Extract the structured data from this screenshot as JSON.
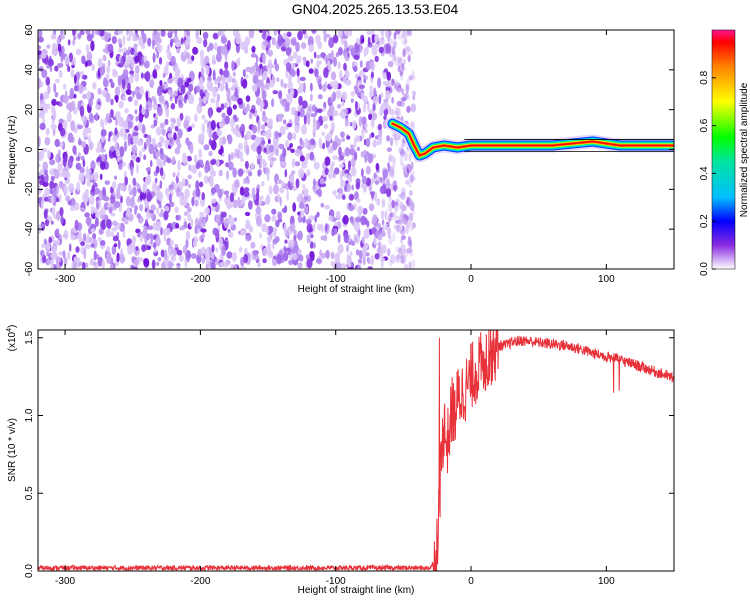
{
  "title": "GN04.2025.265.13.53.E04",
  "chart_data": [
    {
      "type": "heatmap",
      "xlabel": "Height of straight line (km)",
      "ylabel": "Frequency (Hz)",
      "xlim": [
        -320,
        150
      ],
      "ylim": [
        -60,
        60
      ],
      "xticks": [
        -300,
        -200,
        -100,
        0,
        100
      ],
      "yticks": [
        -60,
        -40,
        -20,
        0,
        20,
        40,
        60
      ],
      "noise_region_x": [
        -320,
        -42
      ],
      "signal_band": {
        "x": [
          -58,
          -52,
          -46,
          -42,
          -38,
          -34,
          -28,
          -20,
          -10,
          0,
          20,
          60,
          75,
          90,
          110,
          150
        ],
        "frequency": [
          13,
          11,
          8,
          2,
          -3,
          -2,
          1,
          2,
          1,
          2,
          2,
          2,
          3,
          4,
          2,
          2
        ]
      },
      "colorbar": {
        "label": "Normalized spectral amplitude",
        "ticks": [
          0.0,
          0.2,
          0.4,
          0.6,
          0.8
        ],
        "range": [
          0,
          1
        ]
      },
      "grid": false
    },
    {
      "type": "line",
      "xlabel": "Height of straight line (km)",
      "ylabel": "SNR (10 * v/v)",
      "y_multiplier_label": "(x10",
      "y_multiplier_exp": "4",
      "y_multiplier_close": ")",
      "xlim": [
        -320,
        150
      ],
      "ylim": [
        0,
        1.55
      ],
      "xticks": [
        -300,
        -200,
        -100,
        0,
        100
      ],
      "yticks": [
        "0.0",
        "0.5",
        "1.0",
        "1.5"
      ],
      "series": [
        {
          "color": "#e8323a",
          "x": [
            -320,
            -250,
            -150,
            -60,
            -30,
            -26,
            -24,
            -22,
            -20,
            -18,
            -16,
            -14,
            -12,
            -10,
            -6,
            -2,
            0,
            5,
            10,
            15,
            20,
            25,
            30,
            35,
            40,
            50,
            60,
            70,
            80,
            90,
            100,
            110,
            120,
            130,
            140,
            150
          ],
          "y": [
            0.02,
            0.02,
            0.02,
            0.02,
            0.02,
            0.08,
            0.35,
            0.7,
            0.95,
            0.8,
            0.9,
            1.05,
            1.0,
            1.1,
            1.15,
            1.2,
            1.25,
            1.3,
            1.35,
            1.4,
            1.45,
            1.45,
            1.47,
            1.48,
            1.48,
            1.47,
            1.46,
            1.45,
            1.43,
            1.4,
            1.38,
            1.36,
            1.33,
            1.3,
            1.27,
            1.24
          ]
        }
      ],
      "grid": false
    }
  ]
}
